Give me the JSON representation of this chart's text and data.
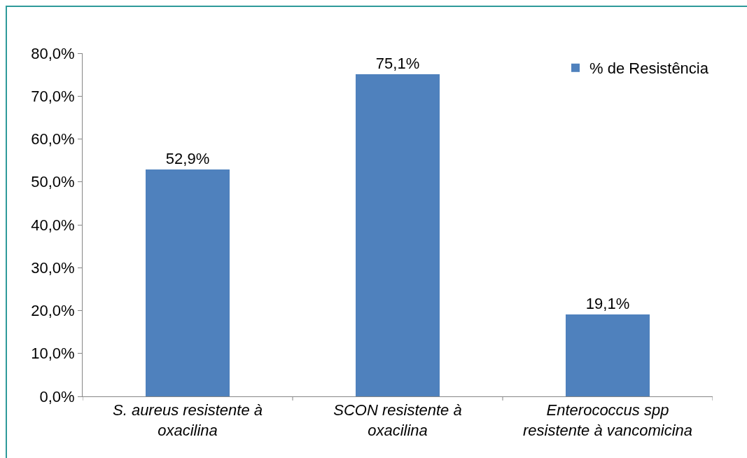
{
  "chart_data": {
    "type": "bar",
    "categories": [
      "S. aureus resistente à oxacilina",
      "SCON resistente à oxacilina",
      "Enterococcus spp resistente à vancomicina"
    ],
    "series": [
      {
        "name": "% de Resistência",
        "color": "#4f81bd",
        "values": [
          52.9,
          75.1,
          19.1
        ],
        "value_labels": [
          "52,9%",
          "75,1%",
          "19,1%"
        ]
      }
    ],
    "ylim": [
      0,
      80
    ],
    "yticks": [
      {
        "value": 0,
        "label": "0,0%"
      },
      {
        "value": 10,
        "label": "10,0%"
      },
      {
        "value": 20,
        "label": "20,0%"
      },
      {
        "value": 30,
        "label": "30,0%"
      },
      {
        "value": 40,
        "label": "40,0%"
      },
      {
        "value": 50,
        "label": "50,0%"
      },
      {
        "value": 60,
        "label": "60,0%"
      },
      {
        "value": 70,
        "label": "70,0%"
      },
      {
        "value": 80,
        "label": "80,0%"
      }
    ],
    "grid": false,
    "legend": "top right"
  }
}
